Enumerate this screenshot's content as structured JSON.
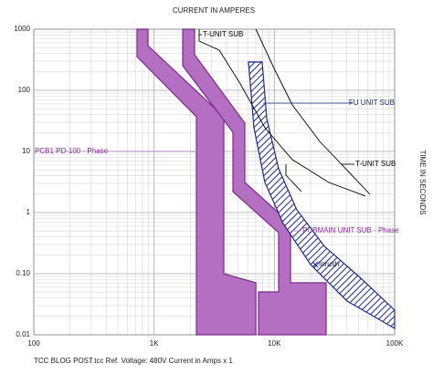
{
  "chart_data": {
    "type": "line",
    "title": "CURRENT IN AMPERES",
    "ylabel": "TIME IN SECONDS",
    "footer": "TCC BLOG POST.tcc   Ref. Voltage: 480V   Current in Amps x 1",
    "log_x": true,
    "log_y": true,
    "grid": true,
    "xlim": [
      100,
      100000
    ],
    "ylim": [
      0.01,
      1000
    ],
    "xticks": [
      100,
      {
        "value": 1000,
        "label": "1K"
      },
      {
        "value": 10000,
        "label": "10K"
      },
      {
        "value": 100000,
        "label": "100K"
      }
    ],
    "yticks": [
      1000,
      100,
      10,
      1,
      {
        "value": 0.1,
        "label": "0.10"
      },
      0.01
    ],
    "series": [
      {
        "name": "PCB1 PD-100 - Phase",
        "style": "band",
        "color": "#b46fc2",
        "x": [
          721,
          889,
          889,
          3802,
          3802,
          7015,
          7015,
          2249,
          2249,
          721
        ],
        "values": [
          1000,
          1000,
          538,
          36.9,
          0.1,
          0.071,
          0.01,
          0.01,
          36.9,
          356
        ]
      },
      {
        "name": "PCBMAIN UNIT SUB - Phase",
        "style": "band",
        "color": "#b46fc2",
        "x": [
          1730,
          2172,
          2172,
          5679,
          5679,
          13620,
          13620,
          26920,
          26920,
          7380,
          7380,
          10850,
          10850,
          4528,
          4528,
          1730
        ],
        "values": [
          1000,
          1000,
          382,
          29.0,
          3.11,
          0.662,
          0.071,
          0.071,
          0.01,
          0.01,
          0.0503,
          0.0503,
          0.47,
          2.2,
          20.6,
          253
        ]
      },
      {
        "name": "FU UNIT SUB",
        "style": "hatch",
        "color": "#1c2a8a",
        "x": [
          6095,
          6761,
          8340,
          11840,
          20000,
          40270,
          100000,
          100000,
          52360,
          26000,
          15380,
          10850,
          8650,
          7925
        ],
        "values": [
          290,
          24.4,
          3.11,
          0.662,
          0.141,
          0.0356,
          0.0127,
          0.0253,
          0.0841,
          0.281,
          1.11,
          5.2,
          34.4,
          290
        ]
      },
      {
        "name": "T-UNIT SUB",
        "style": "line",
        "color": "#000000",
        "x": [
          2371,
          2371,
          3483,
          5115,
          8340,
          14100,
          28380,
          57150
        ],
        "values": [
          1000,
          640,
          454,
          136,
          24.4,
          7.34,
          3.11,
          1.86
        ]
      },
      {
        "name": "T-UNIT SUB",
        "style": "line",
        "color": "#000000",
        "x": [
          7015,
          9940,
          14100,
          23820,
          62370,
          null,
          12470,
          12470,
          16800
        ],
        "values": [
          1000,
          228,
          57.7,
          14.6,
          1.99,
          null,
          6.18,
          4.09,
          2.2
        ]
      }
    ],
    "annotations": [
      {
        "text": "Inrush",
        "x": 21830,
        "y": 0.141
      }
    ]
  }
}
